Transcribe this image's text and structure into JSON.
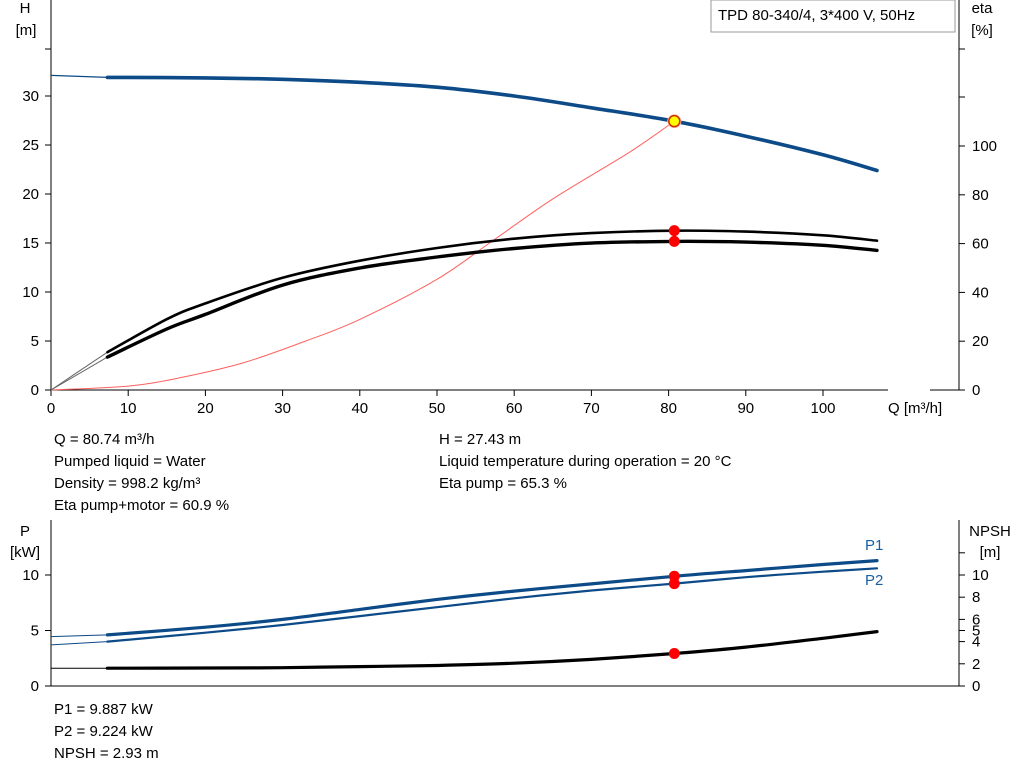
{
  "chart_data": [
    {
      "type": "line",
      "title": "TPD 80-340/4, 3*400 V, 50Hz",
      "xlabel": "Q [m³/h]",
      "ylabel": [
        "H",
        "[m]"
      ],
      "y2label": [
        "eta",
        "[%]"
      ],
      "xlim": [
        0,
        110
      ],
      "ylim": [
        0,
        35
      ],
      "y2lim": [
        0,
        140
      ],
      "xticks": [
        0,
        10,
        20,
        30,
        40,
        50,
        60,
        70,
        80,
        90,
        100
      ],
      "yticks": [
        0,
        5,
        10,
        15,
        20,
        25,
        30
      ],
      "y2ticks": [
        0,
        20,
        40,
        60,
        80,
        100
      ],
      "grid": false,
      "series": [
        {
          "name": "",
          "axis": "left",
          "color": "#0c4a88",
          "x": [
            0,
            7.3,
            20,
            30,
            40,
            50,
            60,
            70,
            80.74,
            90,
            100,
            107
          ],
          "y": [
            32.1,
            31.9,
            31.85,
            31.7,
            31.4,
            30.9,
            30.0,
            28.8,
            27.43,
            25.9,
            24.0,
            22.4
          ]
        },
        {
          "name": "",
          "axis": "right",
          "color": "#000000",
          "x": [
            0,
            7.3,
            15,
            20,
            30,
            40,
            50,
            60,
            70,
            80.74,
            90,
            100,
            107
          ],
          "y": [
            0,
            15.5,
            29,
            35.5,
            46,
            53,
            58.2,
            62.0,
            64.3,
            65.3,
            64.9,
            63.4,
            61.2
          ]
        },
        {
          "name": "",
          "axis": "right",
          "color": "#000000",
          "x": [
            0,
            7.3,
            15,
            20,
            30,
            40,
            50,
            60,
            70,
            80.74,
            90,
            100,
            107
          ],
          "y": [
            0,
            13.5,
            25,
            31,
            43,
            50,
            54.5,
            58.0,
            60.2,
            60.9,
            60.6,
            59.3,
            57.2
          ]
        },
        {
          "name": "",
          "axis": "left",
          "color": "#ff6060",
          "x": [
            0,
            10,
            17,
            25,
            33,
            40,
            50,
            57,
            65,
            75,
            80.74
          ],
          "y": [
            0,
            0.4,
            1.3,
            2.8,
            5.0,
            7.2,
            11.3,
            15.1,
            19.5,
            24.3,
            27.43
          ]
        }
      ],
      "operating_point": {
        "x": 80.74,
        "y": 27.43,
        "eta_pump": 65.3,
        "eta_pump_motor": 60.9
      }
    },
    {
      "type": "line",
      "ylabel": [
        "P",
        "[kW]"
      ],
      "y2label": [
        "NPSH",
        "[m]"
      ],
      "xlim": [
        0,
        110
      ],
      "ylim": [
        0,
        13.5
      ],
      "y2lim": [
        0,
        13.5
      ],
      "yticks": [
        0,
        5,
        10
      ],
      "y2ticks": [
        0,
        2,
        4,
        5,
        6,
        8,
        10,
        12
      ],
      "y2ticklabels": [
        "0",
        "2",
        "4",
        "5",
        "6",
        "8",
        "10",
        ""
      ],
      "grid": false,
      "series": [
        {
          "name": "P1",
          "axis": "left",
          "color": "#0c4a88",
          "x": [
            0,
            7.3,
            20,
            30,
            40,
            50,
            60,
            70,
            80.74,
            90,
            100,
            107
          ],
          "y": [
            4.45,
            4.6,
            5.3,
            6.0,
            6.9,
            7.8,
            8.55,
            9.2,
            9.887,
            10.4,
            10.95,
            11.3
          ]
        },
        {
          "name": "P2",
          "axis": "left",
          "color": "#0c4a88",
          "x": [
            0,
            7.3,
            20,
            30,
            40,
            50,
            60,
            70,
            80.74,
            90,
            100,
            107
          ],
          "y": [
            3.7,
            4.0,
            4.8,
            5.5,
            6.3,
            7.1,
            7.9,
            8.6,
            9.224,
            9.8,
            10.3,
            10.6
          ]
        },
        {
          "name": "",
          "axis": "right",
          "color": "#000000",
          "x": [
            0,
            7.3,
            20,
            30,
            40,
            50,
            60,
            70,
            80.74,
            90,
            100,
            107
          ],
          "y": [
            1.6,
            1.6,
            1.62,
            1.65,
            1.75,
            1.85,
            2.05,
            2.4,
            2.93,
            3.5,
            4.3,
            4.9
          ]
        }
      ],
      "operating_points": {
        "P1": 9.887,
        "P2": 9.224,
        "NPSH": 2.93
      }
    }
  ],
  "info_top_left": [
    "Q = 80.74 m³/h",
    "Pumped liquid = Water",
    "Density = 998.2 kg/m³",
    "Eta pump+motor = 60.9 %"
  ],
  "info_top_right": [
    "H = 27.43 m",
    "Liquid temperature during operation = 20 °C",
    "Eta pump = 65.3 %"
  ],
  "info_bottom": [
    "P1 = 9.887 kW",
    "P2 = 9.224 kW",
    "NPSH = 2.93 m"
  ],
  "colors": {
    "blue_curve": "#0c4a88",
    "black_curve": "#000000",
    "red_curve": "#ff6060",
    "marker": "#ff0000",
    "duty_point": "#ffff00"
  }
}
